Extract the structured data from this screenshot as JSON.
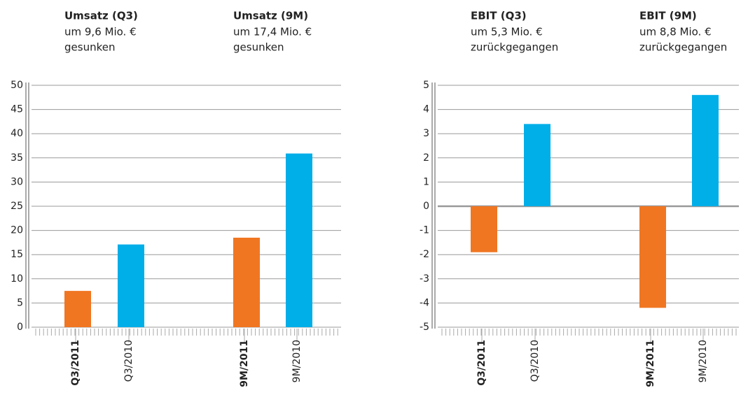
{
  "chart_data": [
    {
      "type": "bar",
      "headers": [
        {
          "title": "Umsatz (Q3)",
          "lines": [
            "um 9,6 Mio. €",
            "gesunken"
          ]
        },
        {
          "title": "Umsatz (9M)",
          "lines": [
            "um 17,4 Mio. €",
            "gesunken"
          ]
        }
      ],
      "categories": [
        "Q3/2011",
        "Q3/2010",
        "9M/2011",
        "9M/2010"
      ],
      "values": [
        7.5,
        17.1,
        18.5,
        35.9
      ],
      "colors": [
        "#f07622",
        "#00aee8",
        "#f07622",
        "#00aee8"
      ],
      "ylim": [
        0,
        50
      ],
      "yticks": [
        0,
        5,
        10,
        15,
        20,
        25,
        30,
        35,
        40,
        45,
        50
      ],
      "grid": true
    },
    {
      "type": "bar",
      "headers": [
        {
          "title": "EBIT (Q3)",
          "lines": [
            "um 5,3 Mio. €",
            "zurückgegangen"
          ]
        },
        {
          "title": "EBIT (9M)",
          "lines": [
            "um 8,8 Mio. €",
            "zurückgegangen"
          ]
        }
      ],
      "categories": [
        "Q3/2011",
        "Q3/2010",
        "9M/2011",
        "9M/2010"
      ],
      "values": [
        -1.9,
        3.4,
        -4.2,
        4.6
      ],
      "colors": [
        "#f07622",
        "#00aee8",
        "#f07622",
        "#00aee8"
      ],
      "ylim": [
        -5,
        5
      ],
      "yticks": [
        -5,
        -4,
        -3,
        -2,
        -1,
        0,
        1,
        2,
        3,
        4,
        5
      ],
      "grid": true
    }
  ]
}
